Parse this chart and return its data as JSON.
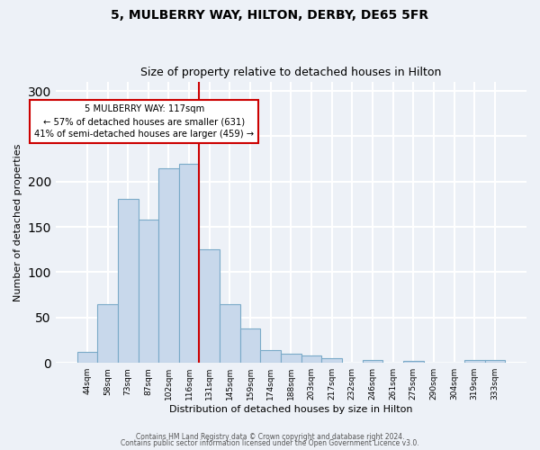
{
  "title": "5, MULBERRY WAY, HILTON, DERBY, DE65 5FR",
  "subtitle": "Size of property relative to detached houses in Hilton",
  "xlabel": "Distribution of detached houses by size in Hilton",
  "ylabel": "Number of detached properties",
  "categories": [
    "44sqm",
    "58sqm",
    "73sqm",
    "87sqm",
    "102sqm",
    "116sqm",
    "131sqm",
    "145sqm",
    "159sqm",
    "174sqm",
    "188sqm",
    "203sqm",
    "217sqm",
    "232sqm",
    "246sqm",
    "261sqm",
    "275sqm",
    "290sqm",
    "304sqm",
    "319sqm",
    "333sqm"
  ],
  "values": [
    12,
    65,
    181,
    158,
    215,
    220,
    125,
    65,
    38,
    14,
    10,
    8,
    5,
    0,
    3,
    0,
    2,
    0,
    0,
    3,
    3
  ],
  "bar_color": "#c8d8eb",
  "bar_edge_color": "#7aaac8",
  "vline_x_index": 5.5,
  "vline_color": "#cc0000",
  "annotation_text": "5 MULBERRY WAY: 117sqm\n← 57% of detached houses are smaller (631)\n41% of semi-detached houses are larger (459) →",
  "annotation_box_color": "#ffffff",
  "annotation_box_edge_color": "#cc0000",
  "ylim": [
    0,
    310
  ],
  "yticks": [
    0,
    50,
    100,
    150,
    200,
    250,
    300
  ],
  "footer1": "Contains HM Land Registry data © Crown copyright and database right 2024.",
  "footer2": "Contains public sector information licensed under the Open Government Licence v3.0.",
  "bg_color": "#edf1f7",
  "plot_bg_color": "#edf1f7",
  "grid_color": "#ffffff",
  "title_fontsize": 10,
  "subtitle_fontsize": 9
}
